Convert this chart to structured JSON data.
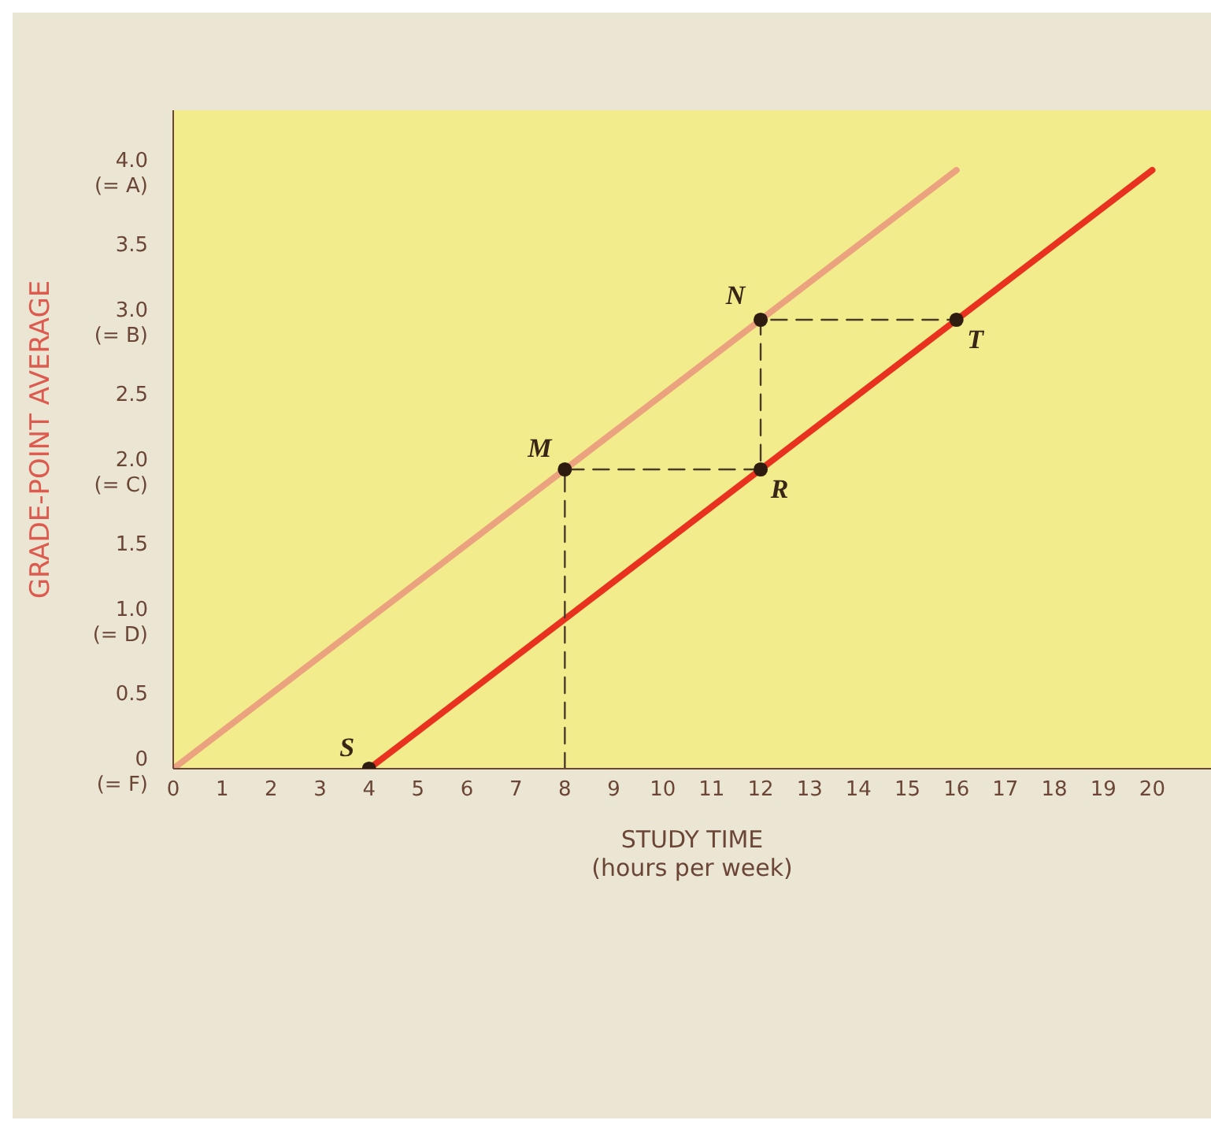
{
  "chart_data": {
    "type": "line",
    "xlabel": "STUDY TIME (hours per week)",
    "ylabel": "GRADE-POINT AVERAGE",
    "xlim": [
      0,
      21.2
    ],
    "xticks": [
      0,
      1,
      2,
      3,
      4,
      5,
      6,
      7,
      8,
      9,
      10,
      11,
      12,
      13,
      14,
      15,
      16,
      17,
      18,
      19,
      20
    ],
    "ylim": [
      0,
      4.4
    ],
    "yticks": [
      {
        "value": 0,
        "label": "0 (= F)"
      },
      0.5,
      {
        "value": 1,
        "label": "1.0 (= D)"
      },
      1.5,
      {
        "value": 2,
        "label": "2.0 (= C)"
      },
      2.5,
      {
        "value": 3,
        "label": "3.0 (= B)"
      },
      3.5,
      {
        "value": 4,
        "label": "4.0 (= A)"
      }
    ],
    "grid": false,
    "series": [
      {
        "color": "#eaa27f",
        "x": [
          0,
          16
        ],
        "values": [
          0,
          4
        ],
        "line_style": "solid",
        "marker": "none"
      },
      {
        "color": "#e8321f",
        "x": [
          4,
          20
        ],
        "values": [
          0,
          4
        ],
        "line_style": "solid",
        "marker": "none"
      },
      {
        "color": "#4a3a2a",
        "x": [
          8,
          8,
          12,
          12,
          16
        ],
        "values": [
          0,
          2,
          2,
          3,
          3
        ],
        "line_style": "dashed",
        "marker": "none"
      },
      {
        "type": "scatter",
        "color": "#2e1c10",
        "x": [
          4,
          8,
          12,
          12,
          16
        ],
        "values": [
          0,
          2,
          3,
          2,
          3
        ],
        "marker": "circle"
      }
    ],
    "annotations": [
      {
        "text": "S",
        "x": 4,
        "y": 0
      },
      {
        "text": "M",
        "x": 8,
        "y": 2
      },
      {
        "text": "N",
        "x": 12,
        "y": 3
      },
      {
        "text": "R",
        "x": 12,
        "y": 2
      },
      {
        "text": "T",
        "x": 16,
        "y": 3
      }
    ]
  }
}
